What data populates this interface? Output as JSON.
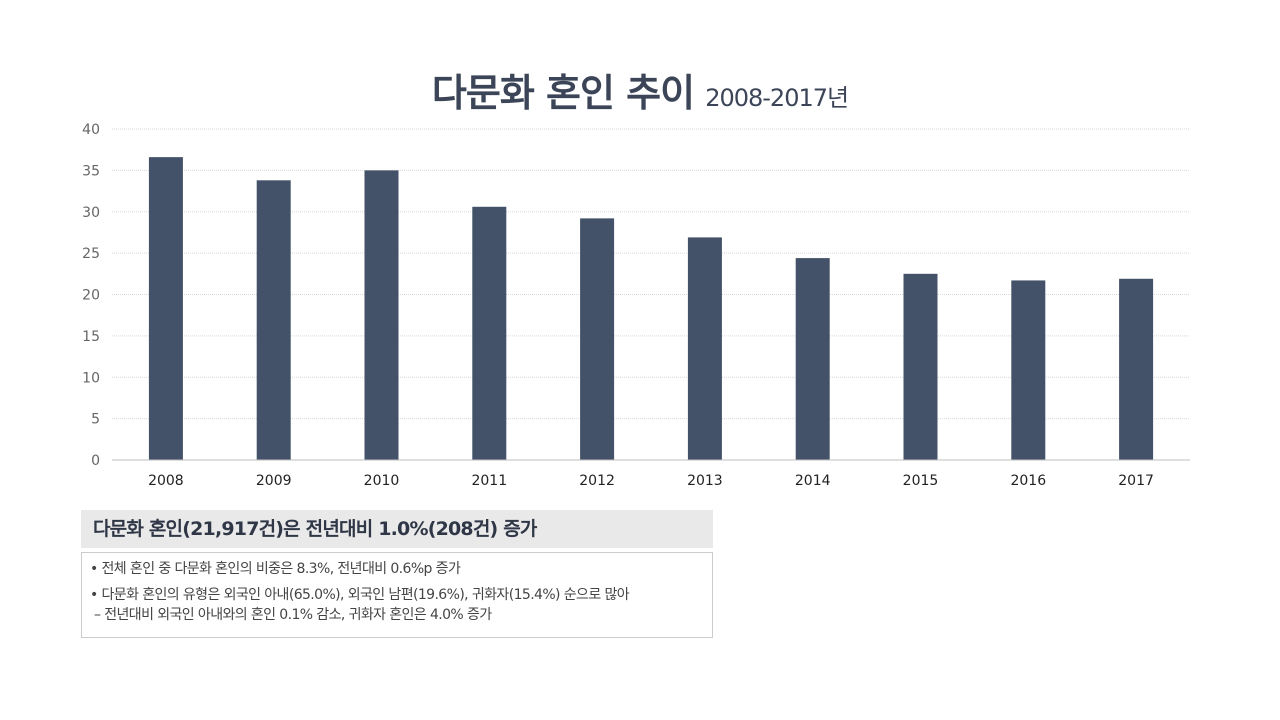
{
  "header": {
    "title": "다문화 혼인 추이",
    "subtitle": "2008-2017년"
  },
  "chart_data": {
    "type": "bar",
    "categories": [
      "2008",
      "2009",
      "2010",
      "2011",
      "2012",
      "2013",
      "2014",
      "2015",
      "2016",
      "2017"
    ],
    "values": [
      36.6,
      33.8,
      35.0,
      30.6,
      29.2,
      26.9,
      24.4,
      22.5,
      21.7,
      21.9
    ],
    "ylim": [
      0,
      40
    ],
    "yticks": [
      "0",
      "5",
      "10",
      "15",
      "20",
      "25",
      "30",
      "35",
      "40"
    ],
    "grid": true,
    "bar_color": "#435268",
    "title": "",
    "xlabel": "",
    "ylabel": ""
  },
  "summary": {
    "headline": "다문화 혼인(21,917건)은 전년대비 1.0%(208건) 증가"
  },
  "details": {
    "bullet1": "• 전체 혼인 중 다문화 혼인의 비중은 8.3%, 전년대비 0.6%p 증가",
    "bullet2": "• 다문화 혼인의 유형은 외국인 아내(65.0%), 외국인 남편(19.6%), 귀화자(15.4%) 순으로 많아",
    "bullet2_sub": "– 전년대비 외국인 아내와의 혼인 0.1% 감소, 귀화자 혼인은 4.0% 증가"
  }
}
